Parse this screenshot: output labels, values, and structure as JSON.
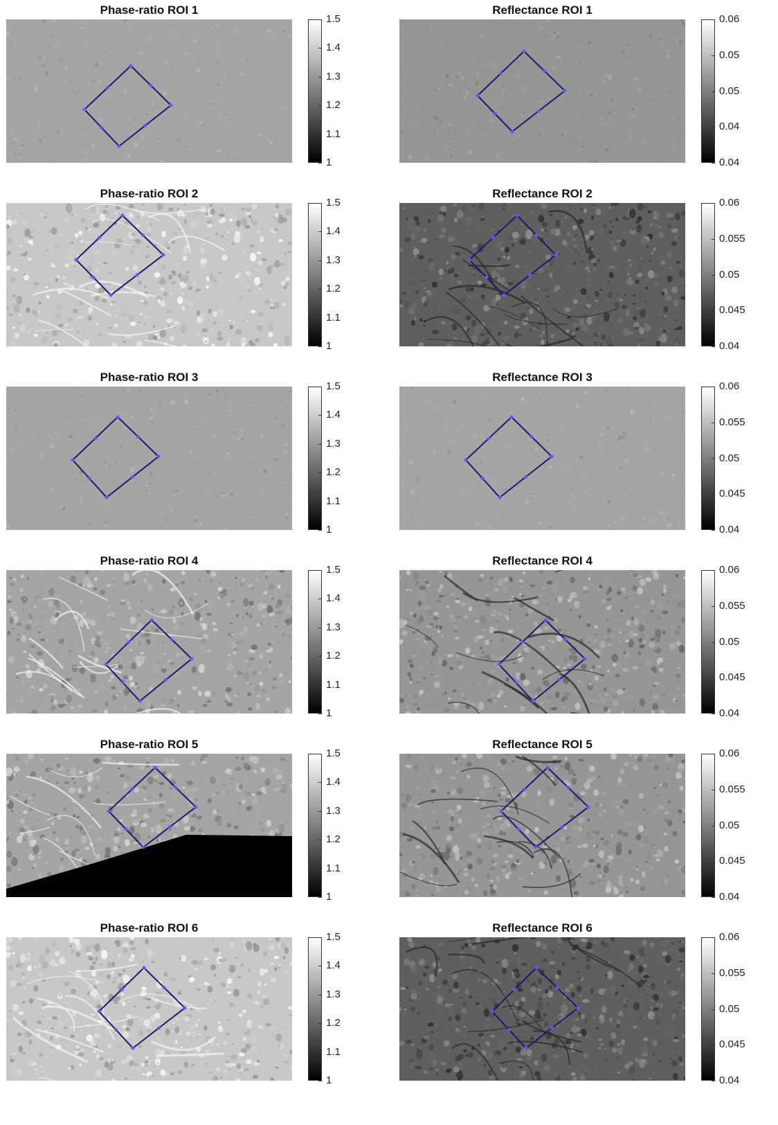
{
  "colorbars": {
    "phase_ratio": {
      "ticks": [
        "1.5",
        "1.4",
        "1.3",
        "1.2",
        "1.1",
        "1"
      ]
    },
    "reflectance_roi1": {
      "ticks": [
        "0.06",
        "0.05",
        "0.05",
        "0.04",
        "0.04"
      ]
    },
    "reflectance": {
      "ticks": [
        "0.06",
        "0.055",
        "0.05",
        "0.045",
        "0.04"
      ]
    }
  },
  "rows": [
    {
      "left": {
        "title": "Phase-ratio ROI 1",
        "tone": "mid-light",
        "dark_bottom": false,
        "texture": "smooth"
      },
      "right": {
        "title": "Reflectance ROI 1",
        "tone": "mid",
        "texture": "smooth"
      }
    },
    {
      "left": {
        "title": "Phase-ratio ROI 2",
        "tone": "light",
        "dark_bottom": false,
        "texture": "rough"
      },
      "right": {
        "title": "Reflectance ROI 2",
        "tone": "dark",
        "texture": "rough"
      }
    },
    {
      "left": {
        "title": "Phase-ratio ROI 3",
        "tone": "mid-light",
        "dark_bottom": false,
        "texture": "smooth"
      },
      "right": {
        "title": "Reflectance ROI 3",
        "tone": "mid-light",
        "texture": "smooth"
      }
    },
    {
      "left": {
        "title": "Phase-ratio ROI 4",
        "tone": "mid-light",
        "dark_bottom": false,
        "texture": "ridges"
      },
      "right": {
        "title": "Reflectance ROI 4",
        "tone": "mid",
        "texture": "ridges"
      }
    },
    {
      "left": {
        "title": "Phase-ratio ROI 5",
        "tone": "mid-light",
        "dark_bottom": true,
        "texture": "ridges"
      },
      "right": {
        "title": "Reflectance ROI 5",
        "tone": "mid",
        "texture": "ridges"
      }
    },
    {
      "left": {
        "title": "Phase-ratio ROI 6",
        "tone": "light",
        "dark_bottom": false,
        "texture": "rough"
      },
      "right": {
        "title": "Reflectance ROI 6",
        "tone": "dark",
        "texture": "rough"
      }
    }
  ],
  "roi_outline_color": "#1a1a6e",
  "roi_vertex_color": "#5a5aff"
}
